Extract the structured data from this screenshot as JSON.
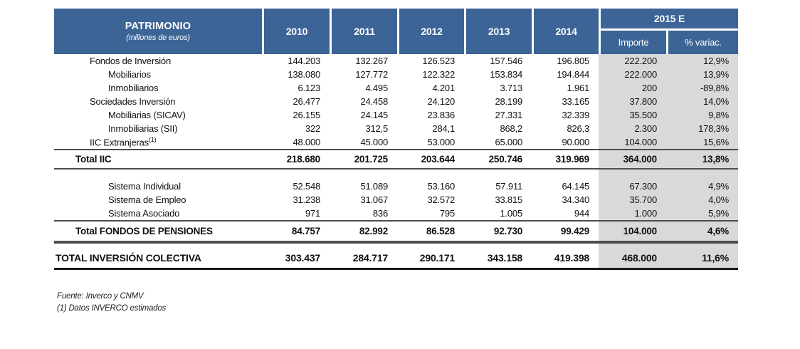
{
  "table": {
    "header": {
      "title": "PATRIMONIO",
      "subtitle": "(millones de euros)",
      "years": [
        "2010",
        "2011",
        "2012",
        "2013",
        "2014"
      ],
      "estimate_label": "2015 E",
      "estimate_sub": [
        "Importe",
        "% variac."
      ]
    },
    "rows": [
      {
        "type": "item",
        "indent": "1",
        "label": "Fondos de Inversión",
        "sup": "",
        "values": [
          "144.203",
          "132.267",
          "126.523",
          "157.546",
          "196.805",
          "222.200",
          "12,9%"
        ]
      },
      {
        "type": "item",
        "indent": "2",
        "label": "Mobiliarios",
        "sup": "",
        "values": [
          "138.080",
          "127.772",
          "122.322",
          "153.834",
          "194.844",
          "222.000",
          "13,9%"
        ]
      },
      {
        "type": "item",
        "indent": "2",
        "label": "Inmobiliarios",
        "sup": "",
        "values": [
          "6.123",
          "4.495",
          "4.201",
          "3.713",
          "1.961",
          "200",
          "-89,8%"
        ]
      },
      {
        "type": "item",
        "indent": "1",
        "label": "Sociedades Inversión",
        "sup": "",
        "values": [
          "26.477",
          "24.458",
          "24.120",
          "28.199",
          "33.165",
          "37.800",
          "14,0%"
        ]
      },
      {
        "type": "item",
        "indent": "2",
        "label": "Mobiliarias (SICAV)",
        "sup": "",
        "values": [
          "26.155",
          "24.145",
          "23.836",
          "27.331",
          "32.339",
          "35.500",
          "9,8%"
        ]
      },
      {
        "type": "item",
        "indent": "2",
        "label": "Inmobiliarias (SII)",
        "sup": "",
        "values": [
          "322",
          "312,5",
          "284,1",
          "868,2",
          "826,3",
          "2.300",
          "178,3%"
        ]
      },
      {
        "type": "item",
        "indent": "1",
        "label": "IIC Extranjeras",
        "sup": "(1)",
        "values": [
          "48.000",
          "45.000",
          "53.000",
          "65.000",
          "90.000",
          "104.000",
          "15,6%"
        ]
      },
      {
        "type": "total-both",
        "indent": "t",
        "label": "Total IIC",
        "sup": "",
        "values": [
          "218.680",
          "201.725",
          "203.644",
          "250.746",
          "319.969",
          "364.000",
          "13,8%"
        ]
      },
      {
        "type": "spacer",
        "height": 14
      },
      {
        "type": "item",
        "indent": "2",
        "label": "Sistema Individual",
        "sup": "",
        "values": [
          "52.548",
          "51.089",
          "53.160",
          "57.911",
          "64.145",
          "67.300",
          "4,9%"
        ]
      },
      {
        "type": "item",
        "indent": "2",
        "label": "Sistema de Empleo",
        "sup": "",
        "values": [
          "31.238",
          "31.067",
          "32.572",
          "33.815",
          "34.340",
          "35.700",
          "4,0%"
        ]
      },
      {
        "type": "item",
        "indent": "2",
        "label": "Sistema Asociado",
        "sup": "",
        "values": [
          "971",
          "836",
          "795",
          "1.005",
          "944",
          "1.000",
          "5,9%"
        ]
      },
      {
        "type": "total-top",
        "indent": "t",
        "label": "Total FONDOS DE PENSIONES",
        "sup": "",
        "values": [
          "84.757",
          "82.992",
          "86.528",
          "92.730",
          "99.429",
          "104.000",
          "4,6%"
        ]
      },
      {
        "type": "rule-double"
      },
      {
        "type": "spacer",
        "height": 5
      },
      {
        "type": "grand",
        "indent": "0",
        "label": "TOTAL INVERSIÓN COLECTIVA",
        "sup": "",
        "values": [
          "303.437",
          "284.717",
          "290.171",
          "343.158",
          "419.398",
          "468.000",
          "11,6%"
        ]
      }
    ],
    "footnotes": {
      "source": "Fuente: Inverco y CNMV",
      "estimate_note": "(1) Datos INVERCO estimados"
    }
  },
  "colors": {
    "header_bg": "#3C6496",
    "estimate_col_bg": "#D9D9D9",
    "section_line": "#4D4D4D",
    "bottom_line": "#1A1A1A"
  }
}
